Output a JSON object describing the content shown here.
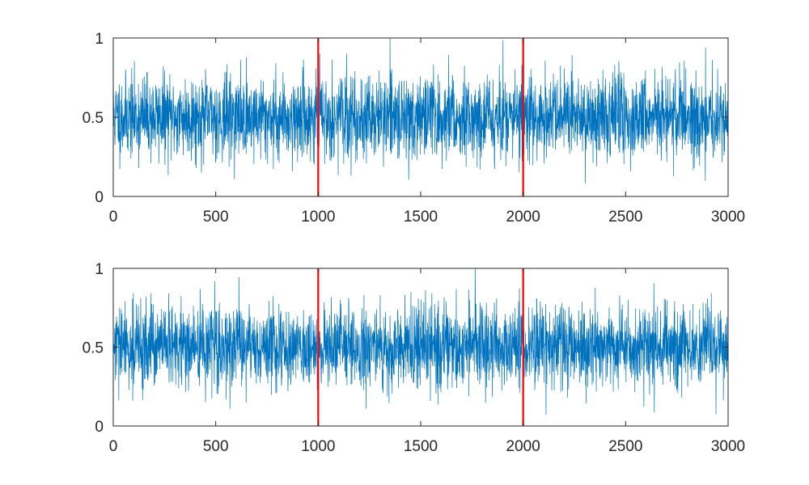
{
  "colors": {
    "series": "#0072BD",
    "marker": "#FF0000",
    "axis": "#262626",
    "background": "#FFFFFF"
  },
  "chart_data": [
    {
      "type": "line",
      "title": "",
      "xlabel": "",
      "ylabel": "",
      "xlim": [
        0,
        3000
      ],
      "ylim": [
        0,
        1
      ],
      "xticks": [
        0,
        500,
        1000,
        1500,
        2000,
        2500,
        3000
      ],
      "yticks": [
        0,
        0.5,
        1
      ],
      "xtick_labels": [
        "0",
        "500",
        "1000",
        "1500",
        "2000",
        "2500",
        "3000"
      ],
      "ytick_labels": [
        "0",
        "0.5",
        "1"
      ],
      "grid": false,
      "series": [
        {
          "n_points": 3000,
          "mean": 0.5,
          "std": 0.13,
          "min": 0.02,
          "max": 1.0,
          "seed": 11
        }
      ],
      "vlines": [
        1000,
        2000
      ]
    },
    {
      "type": "line",
      "title": "",
      "xlabel": "",
      "ylabel": "",
      "xlim": [
        0,
        3000
      ],
      "ylim": [
        0,
        1
      ],
      "xticks": [
        0,
        500,
        1000,
        1500,
        2000,
        2500,
        3000
      ],
      "yticks": [
        0,
        0.5,
        1
      ],
      "xtick_labels": [
        "0",
        "500",
        "1000",
        "1500",
        "2000",
        "2500",
        "3000"
      ],
      "ytick_labels": [
        "0",
        "0.5",
        "1"
      ],
      "grid": false,
      "series": [
        {
          "n_points": 3000,
          "mean": 0.5,
          "std": 0.13,
          "min": 0.0,
          "max": 1.0,
          "seed": 29
        }
      ],
      "vlines": [
        1000,
        2000
      ]
    }
  ]
}
